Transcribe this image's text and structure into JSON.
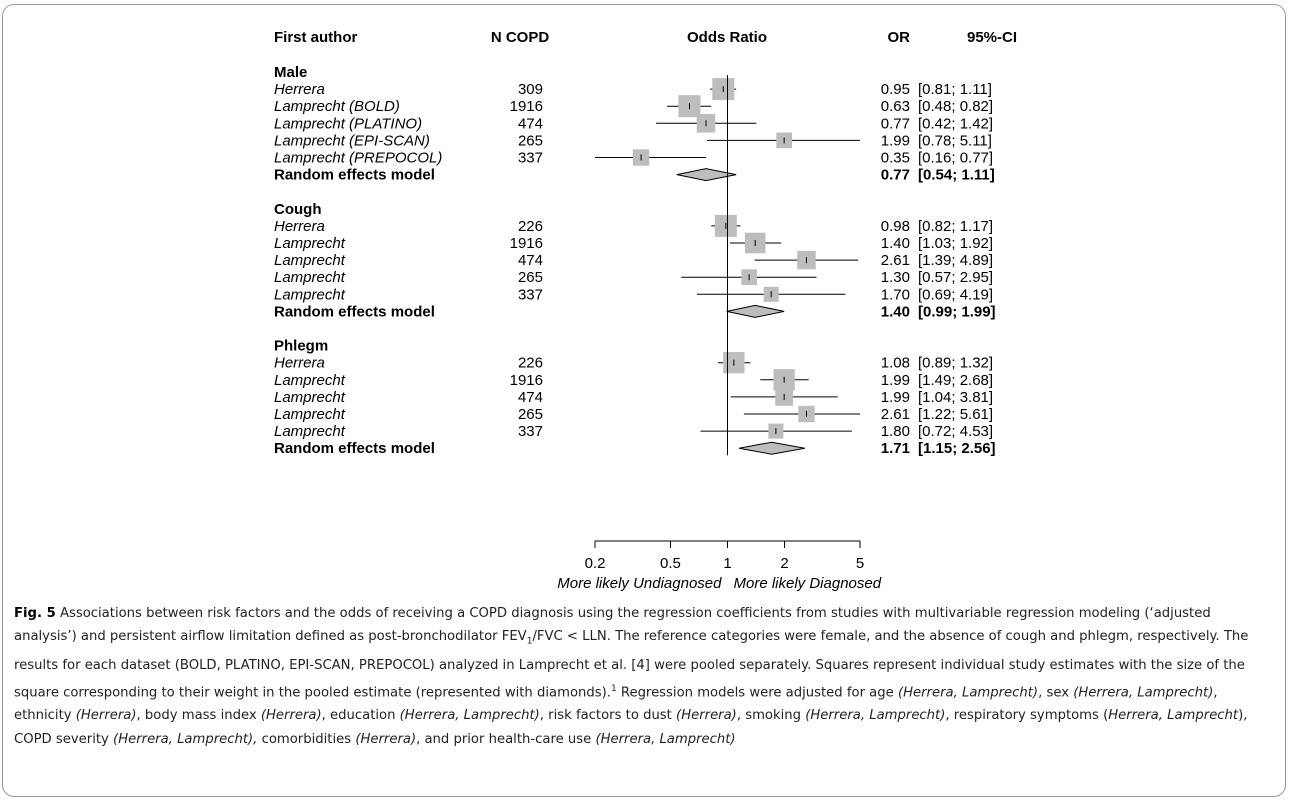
{
  "columns": {
    "author": "First author",
    "n": "N COPD",
    "plot": "Odds Ratio",
    "or": "OR",
    "ci": "95%-CI"
  },
  "chart_data": {
    "type": "forest",
    "x_scale": "log",
    "xlim": [
      0.2,
      5
    ],
    "x_ticks": [
      {
        "v": 0.2,
        "label": "0.2"
      },
      {
        "v": 0.5,
        "label": "0.5"
      },
      {
        "v": 1,
        "label": "1"
      },
      {
        "v": 2,
        "label": "2"
      },
      {
        "v": 5,
        "label": "5"
      }
    ],
    "reference_line": 1,
    "direction_labels": {
      "left": "More likely Undiagnosed",
      "right": "More likely Diagnosed"
    },
    "groups": [
      {
        "name": "Male",
        "studies": [
          {
            "author": "Herrera",
            "n": "309",
            "or": 0.95,
            "lo": 0.81,
            "hi": 1.11,
            "or_text": "0.95",
            "ci_text": "[0.81; 1.11]",
            "weight": 1.0
          },
          {
            "author": "Lamprecht (BOLD)",
            "n": "1916",
            "or": 0.63,
            "lo": 0.48,
            "hi": 0.82,
            "or_text": "0.63",
            "ci_text": "[0.48; 0.82]",
            "weight": 1.0
          },
          {
            "author": "Lamprecht (PLATINO)",
            "n": "474",
            "or": 0.77,
            "lo": 0.42,
            "hi": 1.42,
            "or_text": "0.77",
            "ci_text": "[0.42; 1.42]",
            "weight": 0.75
          },
          {
            "author": "Lamprecht (EPI-SCAN)",
            "n": "265",
            "or": 1.99,
            "lo": 0.78,
            "hi": 5.11,
            "or_text": "1.99",
            "ci_text": "[0.78; 5.11]",
            "weight": 0.55
          },
          {
            "author": "Lamprecht (PREPOCOL)",
            "n": "337",
            "or": 0.35,
            "lo": 0.16,
            "hi": 0.77,
            "or_text": "0.35",
            "ci_text": "[0.16; 0.77]",
            "weight": 0.6
          }
        ],
        "pooled": {
          "label": "Random effects model",
          "or": 0.77,
          "lo": 0.54,
          "hi": 1.11,
          "or_text": "0.77",
          "ci_text": "[0.54; 1.11]"
        }
      },
      {
        "name": "Cough",
        "studies": [
          {
            "author": "Herrera",
            "n": "226",
            "or": 0.98,
            "lo": 0.82,
            "hi": 1.17,
            "or_text": "0.98",
            "ci_text": "[0.82; 1.17]",
            "weight": 1.0
          },
          {
            "author": "Lamprecht",
            "n": "1916",
            "or": 1.4,
            "lo": 1.03,
            "hi": 1.92,
            "or_text": "1.40",
            "ci_text": "[1.03; 1.92]",
            "weight": 0.9
          },
          {
            "author": "Lamprecht",
            "n": "474",
            "or": 2.61,
            "lo": 1.39,
            "hi": 4.89,
            "or_text": "2.61",
            "ci_text": "[1.39; 4.89]",
            "weight": 0.75
          },
          {
            "author": "Lamprecht",
            "n": "265",
            "or": 1.3,
            "lo": 0.57,
            "hi": 2.95,
            "or_text": "1.30",
            "ci_text": "[0.57; 2.95]",
            "weight": 0.55
          },
          {
            "author": "Lamprecht",
            "n": "337",
            "or": 1.7,
            "lo": 0.69,
            "hi": 4.19,
            "or_text": "1.70",
            "ci_text": "[0.69; 4.19]",
            "weight": 0.5
          }
        ],
        "pooled": {
          "label": "Random effects model",
          "or": 1.4,
          "lo": 0.99,
          "hi": 1.99,
          "or_text": "1.40",
          "ci_text": "[0.99; 1.99]"
        }
      },
      {
        "name": "Phlegm",
        "studies": [
          {
            "author": "Herrera",
            "n": "226",
            "or": 1.08,
            "lo": 0.89,
            "hi": 1.32,
            "or_text": "1.08",
            "ci_text": "[0.89; 1.32]",
            "weight": 0.95
          },
          {
            "author": "Lamprecht",
            "n": "1916",
            "or": 1.99,
            "lo": 1.49,
            "hi": 2.68,
            "or_text": "1.99",
            "ci_text": "[1.49; 2.68]",
            "weight": 0.95
          },
          {
            "author": "Lamprecht",
            "n": "474",
            "or": 1.99,
            "lo": 1.04,
            "hi": 3.81,
            "or_text": "1.99",
            "ci_text": "[1.04; 3.81]",
            "weight": 0.7
          },
          {
            "author": "Lamprecht",
            "n": "265",
            "or": 2.61,
            "lo": 1.22,
            "hi": 5.61,
            "or_text": "2.61",
            "ci_text": "[1.22; 5.61]",
            "weight": 0.6
          },
          {
            "author": "Lamprecht",
            "n": "337",
            "or": 1.8,
            "lo": 0.72,
            "hi": 4.53,
            "or_text": "1.80",
            "ci_text": "[0.72; 4.53]",
            "weight": 0.5
          }
        ],
        "pooled": {
          "label": "Random effects model",
          "or": 1.71,
          "lo": 1.15,
          "hi": 2.56,
          "or_text": "1.71",
          "ci_text": "[1.15; 2.56]"
        }
      }
    ]
  },
  "caption": {
    "fig_label": "Fig. 5",
    "p1": " Associations between risk factors and the odds of receiving a COPD diagnosis using the regression coefficients from studies with multivariable regression modeling (‘adjusted analysis’) and persistent airflow limitation defined as post-bronchodilator FEV",
    "sub1": "1",
    "p2": "/FVC < LLN. The reference categories were female, and the absence of cough and phlegm, respectively. The results for each dataset (BOLD, PLATINO, EPI-SCAN, PREPOCOL) analyzed in Lamprecht et al. [4] were pooled separately. Squares represent individual study estimates with the size of the square corresponding to their weight in the pooled estimate (represented with diamonds).",
    "sup1": "1",
    "p3": " Regression models were adjusted for age ",
    "i1": "(Herrera, Lamprecht)",
    "p4": ", sex ",
    "i2": "(Herrera, Lamprecht)",
    "p5": ", ethnicity ",
    "i3": "(Herrera)",
    "p6": ", body mass index ",
    "i4": "(Herrera)",
    "p7": ", education ",
    "i5": "(Herrera, Lamprecht)",
    "p8": ", risk factors to dust ",
    "i6": "(Herrera)",
    "p9": ", smoking ",
    "i7": "(Herrera, Lamprecht)",
    "p10": ", respiratory symptoms (",
    "i8": "Herrera, Lamprecht",
    "p11": "), COPD severity ",
    "i9": "(Herrera, Lamprecht),",
    "p12": " comorbidities ",
    "i10": "(Herrera)",
    "p13": ", and prior health-care use ",
    "i11": "(Herrera, Lamprecht)"
  }
}
